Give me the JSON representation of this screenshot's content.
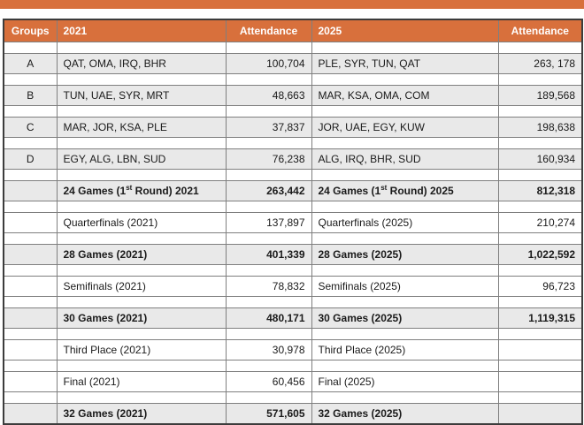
{
  "title_bar": {
    "color": "#d8703c"
  },
  "colors": {
    "accent": "#d8703c",
    "row_gray": "#e9e9e9",
    "border_inner": "#7f7f7f",
    "border_outer": "#3c3c3c",
    "header_text": "#ffffff",
    "body_text": "#1a1a1a"
  },
  "chart_data": {
    "type": "table",
    "columns": [
      "Groups",
      "2021",
      "Attendance",
      "2025",
      "Attendance"
    ],
    "rows": [
      {
        "style": "group",
        "group": "A",
        "l2021": "QAT, OMA, IRQ, BHR",
        "a2021": "100,704",
        "l2025": "PLE, SYR, TUN, QAT",
        "a2025": "263, 178"
      },
      {
        "style": "group",
        "group": "B",
        "l2021": "TUN, UAE, SYR, MRT",
        "a2021": "48,663",
        "l2025": "MAR, KSA, OMA, COM",
        "a2025": "189,568"
      },
      {
        "style": "group",
        "group": "C",
        "l2021": "MAR, JOR, KSA, PLE",
        "a2021": "37,837",
        "l2025": "JOR, UAE, EGY, KUW",
        "a2025": "198,638"
      },
      {
        "style": "group",
        "group": "D",
        "l2021": "EGY, ALG, LBN, SUD",
        "a2021": "76,238",
        "l2025": "ALG, IRQ, BHR, SUD",
        "a2025": "160,934"
      },
      {
        "style": "total",
        "group": "",
        "l2021": {
          "pre": "24 Games (1",
          "sup": "st",
          "post": " Round) 2021"
        },
        "a2021": "263,442",
        "l2025": {
          "pre": "24 Games (1",
          "sup": "st",
          "post": " Round) 2025"
        },
        "a2025": "812,318"
      },
      {
        "style": "stage",
        "group": "",
        "l2021": "Quarterfinals (2021)",
        "a2021": "137,897",
        "l2025": "Quarterfinals (2025)",
        "a2025": "210,274"
      },
      {
        "style": "total",
        "group": "",
        "l2021": "28 Games (2021)",
        "a2021": "401,339",
        "l2025": "28 Games (2025)",
        "a2025": "1,022,592"
      },
      {
        "style": "stage",
        "group": "",
        "l2021": "Semifinals (2021)",
        "a2021": "78,832",
        "l2025": "Semifinals (2025)",
        "a2025": "96,723"
      },
      {
        "style": "total",
        "group": "",
        "l2021": "30 Games (2021)",
        "a2021": "480,171",
        "l2025": "30 Games (2025)",
        "a2025": "1,119,315"
      },
      {
        "style": "stage",
        "group": "",
        "l2021": "Third Place (2021)",
        "a2021": "30,978",
        "l2025": "Third Place (2025)",
        "a2025": ""
      },
      {
        "style": "stage",
        "group": "",
        "l2021": "Final (2021)",
        "a2021": "60,456",
        "l2025": "Final (2025)",
        "a2025": ""
      },
      {
        "style": "total",
        "group": "",
        "l2021": "32 Games (2021)",
        "a2021": "571,605",
        "l2025": "32 Games (2025)",
        "a2025": ""
      }
    ]
  }
}
